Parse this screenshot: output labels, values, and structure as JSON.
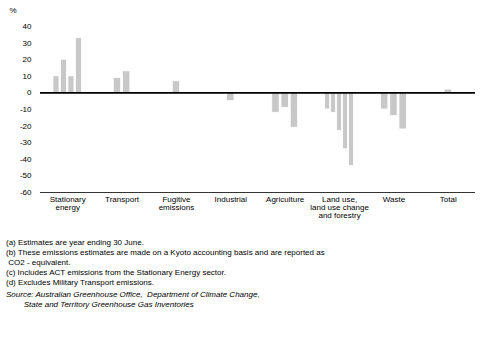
{
  "chart_data": {
    "type": "bar",
    "ylabel": "%",
    "categories": [
      "Stationary\nenergy",
      "Transport",
      "Fugitive\nemissions",
      "Industrial",
      "Agriculture",
      "Land use,\nland use change\nand forestry",
      "Waste",
      "Total"
    ],
    "values": [
      [
        10,
        20,
        10,
        33
      ],
      [
        9,
        13
      ],
      [
        7
      ],
      [
        -5
      ],
      [
        -12,
        -9,
        -21
      ],
      [
        -10,
        -12,
        -23,
        -34,
        -44
      ],
      [
        -10,
        -14,
        -22
      ],
      [
        2
      ]
    ],
    "color": "#c8c8c8",
    "ylim": [
      -60,
      40
    ],
    "yticks": [
      -60,
      -50,
      -40,
      -30,
      -20,
      -10,
      0,
      10,
      20,
      30,
      40
    ],
    "grid": false,
    "footnotes": [
      "(a) Estimates are year ending 30 June.",
      "(b) These emissions estimates are made on a Kyoto accounting basis and are reported as",
      " CO2 - equivalent.",
      "(c) Includes ACT emissions from the Stationary Energy sector.",
      "(d) Excludes Military Transport emissions."
    ],
    "source": "Source: Australian Greenhouse Office,  Department of Climate Change,\n        State and Territory Greenhouse Gas Inventories"
  }
}
